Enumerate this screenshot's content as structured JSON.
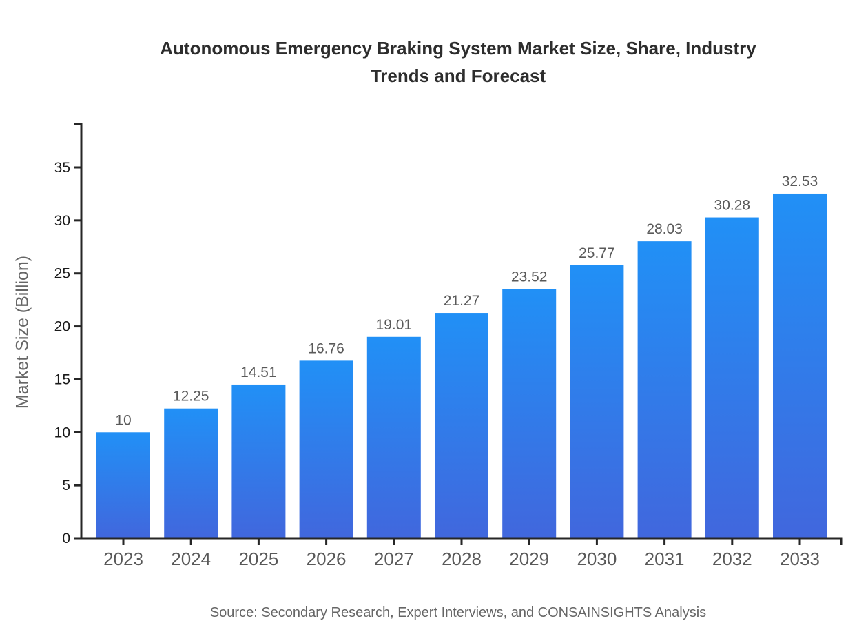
{
  "title": "Autonomous Emergency Braking System Market Size, Share, Industry Trends and Forecast",
  "source_note": "Source: Secondary Research, Expert Interviews, and CONSAINSIGHTS Analysis",
  "colors": {
    "bar_gradient_top": "#2190F6",
    "bar_gradient_bottom": "#4167DD",
    "axis": "#262626",
    "y_tick_label": "#1a1a1a",
    "x_tick_label": "#595959",
    "value_label": "#595959",
    "title": "#2d2d2d",
    "muted_text": "#666666"
  },
  "chart_data": {
    "type": "bar",
    "title": "Autonomous Emergency Braking System Market Size, Share, Industry Trends and Forecast",
    "categories": [
      "2023",
      "2024",
      "2025",
      "2026",
      "2027",
      "2028",
      "2029",
      "2030",
      "2031",
      "2032",
      "2033"
    ],
    "values": [
      10,
      12.25,
      14.51,
      16.76,
      19.01,
      21.27,
      23.52,
      25.77,
      28.03,
      30.28,
      32.53
    ],
    "value_labels": [
      "10",
      "12.25",
      "14.51",
      "16.76",
      "19.01",
      "21.27",
      "23.52",
      "25.77",
      "28.03",
      "30.28",
      "32.53"
    ],
    "xlabel": "",
    "ylabel": "Market Size (Billion)",
    "ylim": [
      0,
      39
    ],
    "yticks": [
      0,
      5,
      10,
      15,
      20,
      25,
      30,
      35
    ],
    "grid": false,
    "legend": "none"
  }
}
